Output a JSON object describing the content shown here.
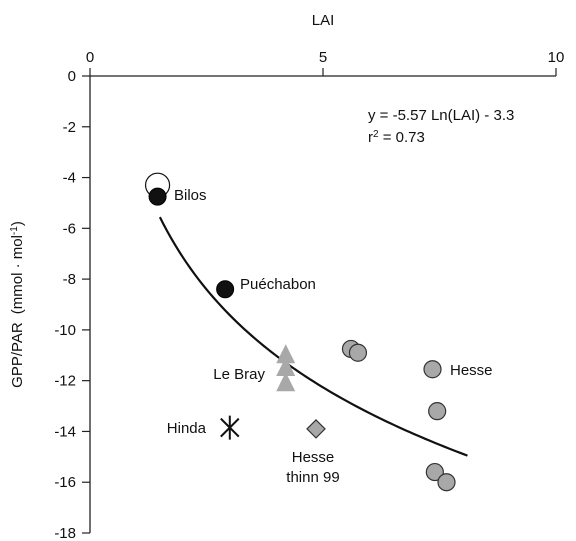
{
  "chart_data": {
    "type": "scatter",
    "xlabel": "LAI",
    "ylabel": "GPP/PAR",
    "ylabel_unit": "(mmol · mol",
    "ylabel_unit_exp": "-1",
    "ylabel_unit_close": ")",
    "xlim": [
      0,
      10
    ],
    "ylim": [
      -18,
      0
    ],
    "x_axis_position": "top",
    "x_ticks": [
      0,
      5,
      10
    ],
    "y_ticks": [
      0,
      -2,
      -4,
      -6,
      -8,
      -10,
      -12,
      -14,
      -16,
      -18
    ],
    "grid": false,
    "legend": "none",
    "equation": "y = -5.57 Ln(LAI) - 3.3",
    "r2_prefix": "r",
    "r2_exp": "2",
    "r2_suffix": " = 0.73",
    "fit": {
      "a": -5.57,
      "b": -3.3,
      "x_start": 1.5,
      "x_end": 8.1
    },
    "sites": [
      {
        "label": "Bilos",
        "marker": "circle-black",
        "color": "#111111",
        "points": [
          {
            "x": 1.45,
            "y": -4.75
          }
        ],
        "open_points": [
          {
            "x": 1.45,
            "y": -4.3
          }
        ]
      },
      {
        "label": "Puéchabon",
        "marker": "circle-black",
        "color": "#111111",
        "points": [
          {
            "x": 2.9,
            "y": -8.4
          }
        ]
      },
      {
        "label": "Le Bray",
        "marker": "triangle-gray",
        "color": "#a8a8a8",
        "points": [
          {
            "x": 4.2,
            "y": -11.0
          },
          {
            "x": 4.2,
            "y": -11.5
          },
          {
            "x": 4.2,
            "y": -12.1
          }
        ]
      },
      {
        "label": "Hinda",
        "marker": "star",
        "color": "#111111",
        "points": [
          {
            "x": 3.0,
            "y": -13.85
          }
        ]
      },
      {
        "label": "Hesse thinn 99",
        "label_lines": [
          "Hesse",
          "thinn 99"
        ],
        "marker": "diamond-gray",
        "color": "#a8a8a8",
        "points": [
          {
            "x": 4.85,
            "y": -13.9
          }
        ]
      },
      {
        "label": "Hesse",
        "marker": "circle-gray",
        "color": "#a8a8a8",
        "points": [
          {
            "x": 5.6,
            "y": -10.75
          },
          {
            "x": 5.75,
            "y": -10.9
          },
          {
            "x": 7.35,
            "y": -11.55
          },
          {
            "x": 7.45,
            "y": -13.2
          },
          {
            "x": 7.4,
            "y": -15.6
          },
          {
            "x": 7.65,
            "y": -16.0
          }
        ]
      }
    ]
  }
}
